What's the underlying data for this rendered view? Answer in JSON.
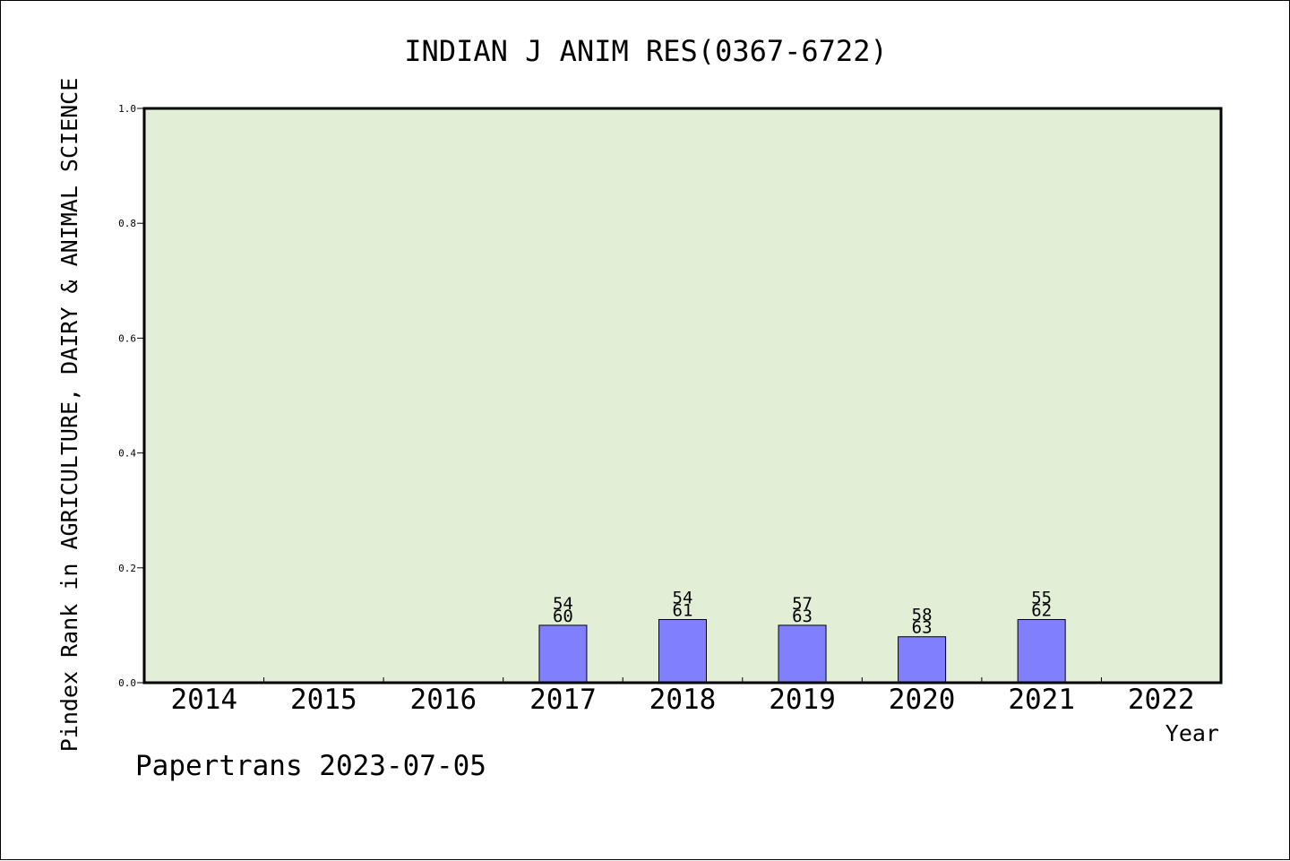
{
  "chart_data": {
    "type": "bar",
    "title": "INDIAN J ANIM RES(0367-6722)",
    "xlabel": "Year",
    "ylabel": "Pindex Rank in AGRICULTURE, DAIRY & ANIMAL SCIENCE",
    "ylim": [
      0,
      1.0
    ],
    "yticks": [
      "0.0",
      "0.2",
      "0.4",
      "0.6",
      "0.8",
      "1.0"
    ],
    "categories": [
      "2014",
      "2015",
      "2016",
      "2017",
      "2018",
      "2019",
      "2020",
      "2021",
      "2022"
    ],
    "values": [
      null,
      null,
      null,
      0.1,
      0.11,
      0.1,
      0.08,
      0.11,
      null
    ],
    "labels": [
      null,
      null,
      null,
      {
        "rank": "54",
        "total": "60"
      },
      {
        "rank": "54",
        "total": "61"
      },
      {
        "rank": "57",
        "total": "63"
      },
      {
        "rank": "58",
        "total": "63"
      },
      {
        "rank": "55",
        "total": "62"
      },
      null
    ],
    "grid": false,
    "colors": {
      "plot_background": "#e2efd6",
      "bar_fill": "#8080ff",
      "bar_stroke": "#000000"
    }
  },
  "footer": "Papertrans 2023-07-05"
}
